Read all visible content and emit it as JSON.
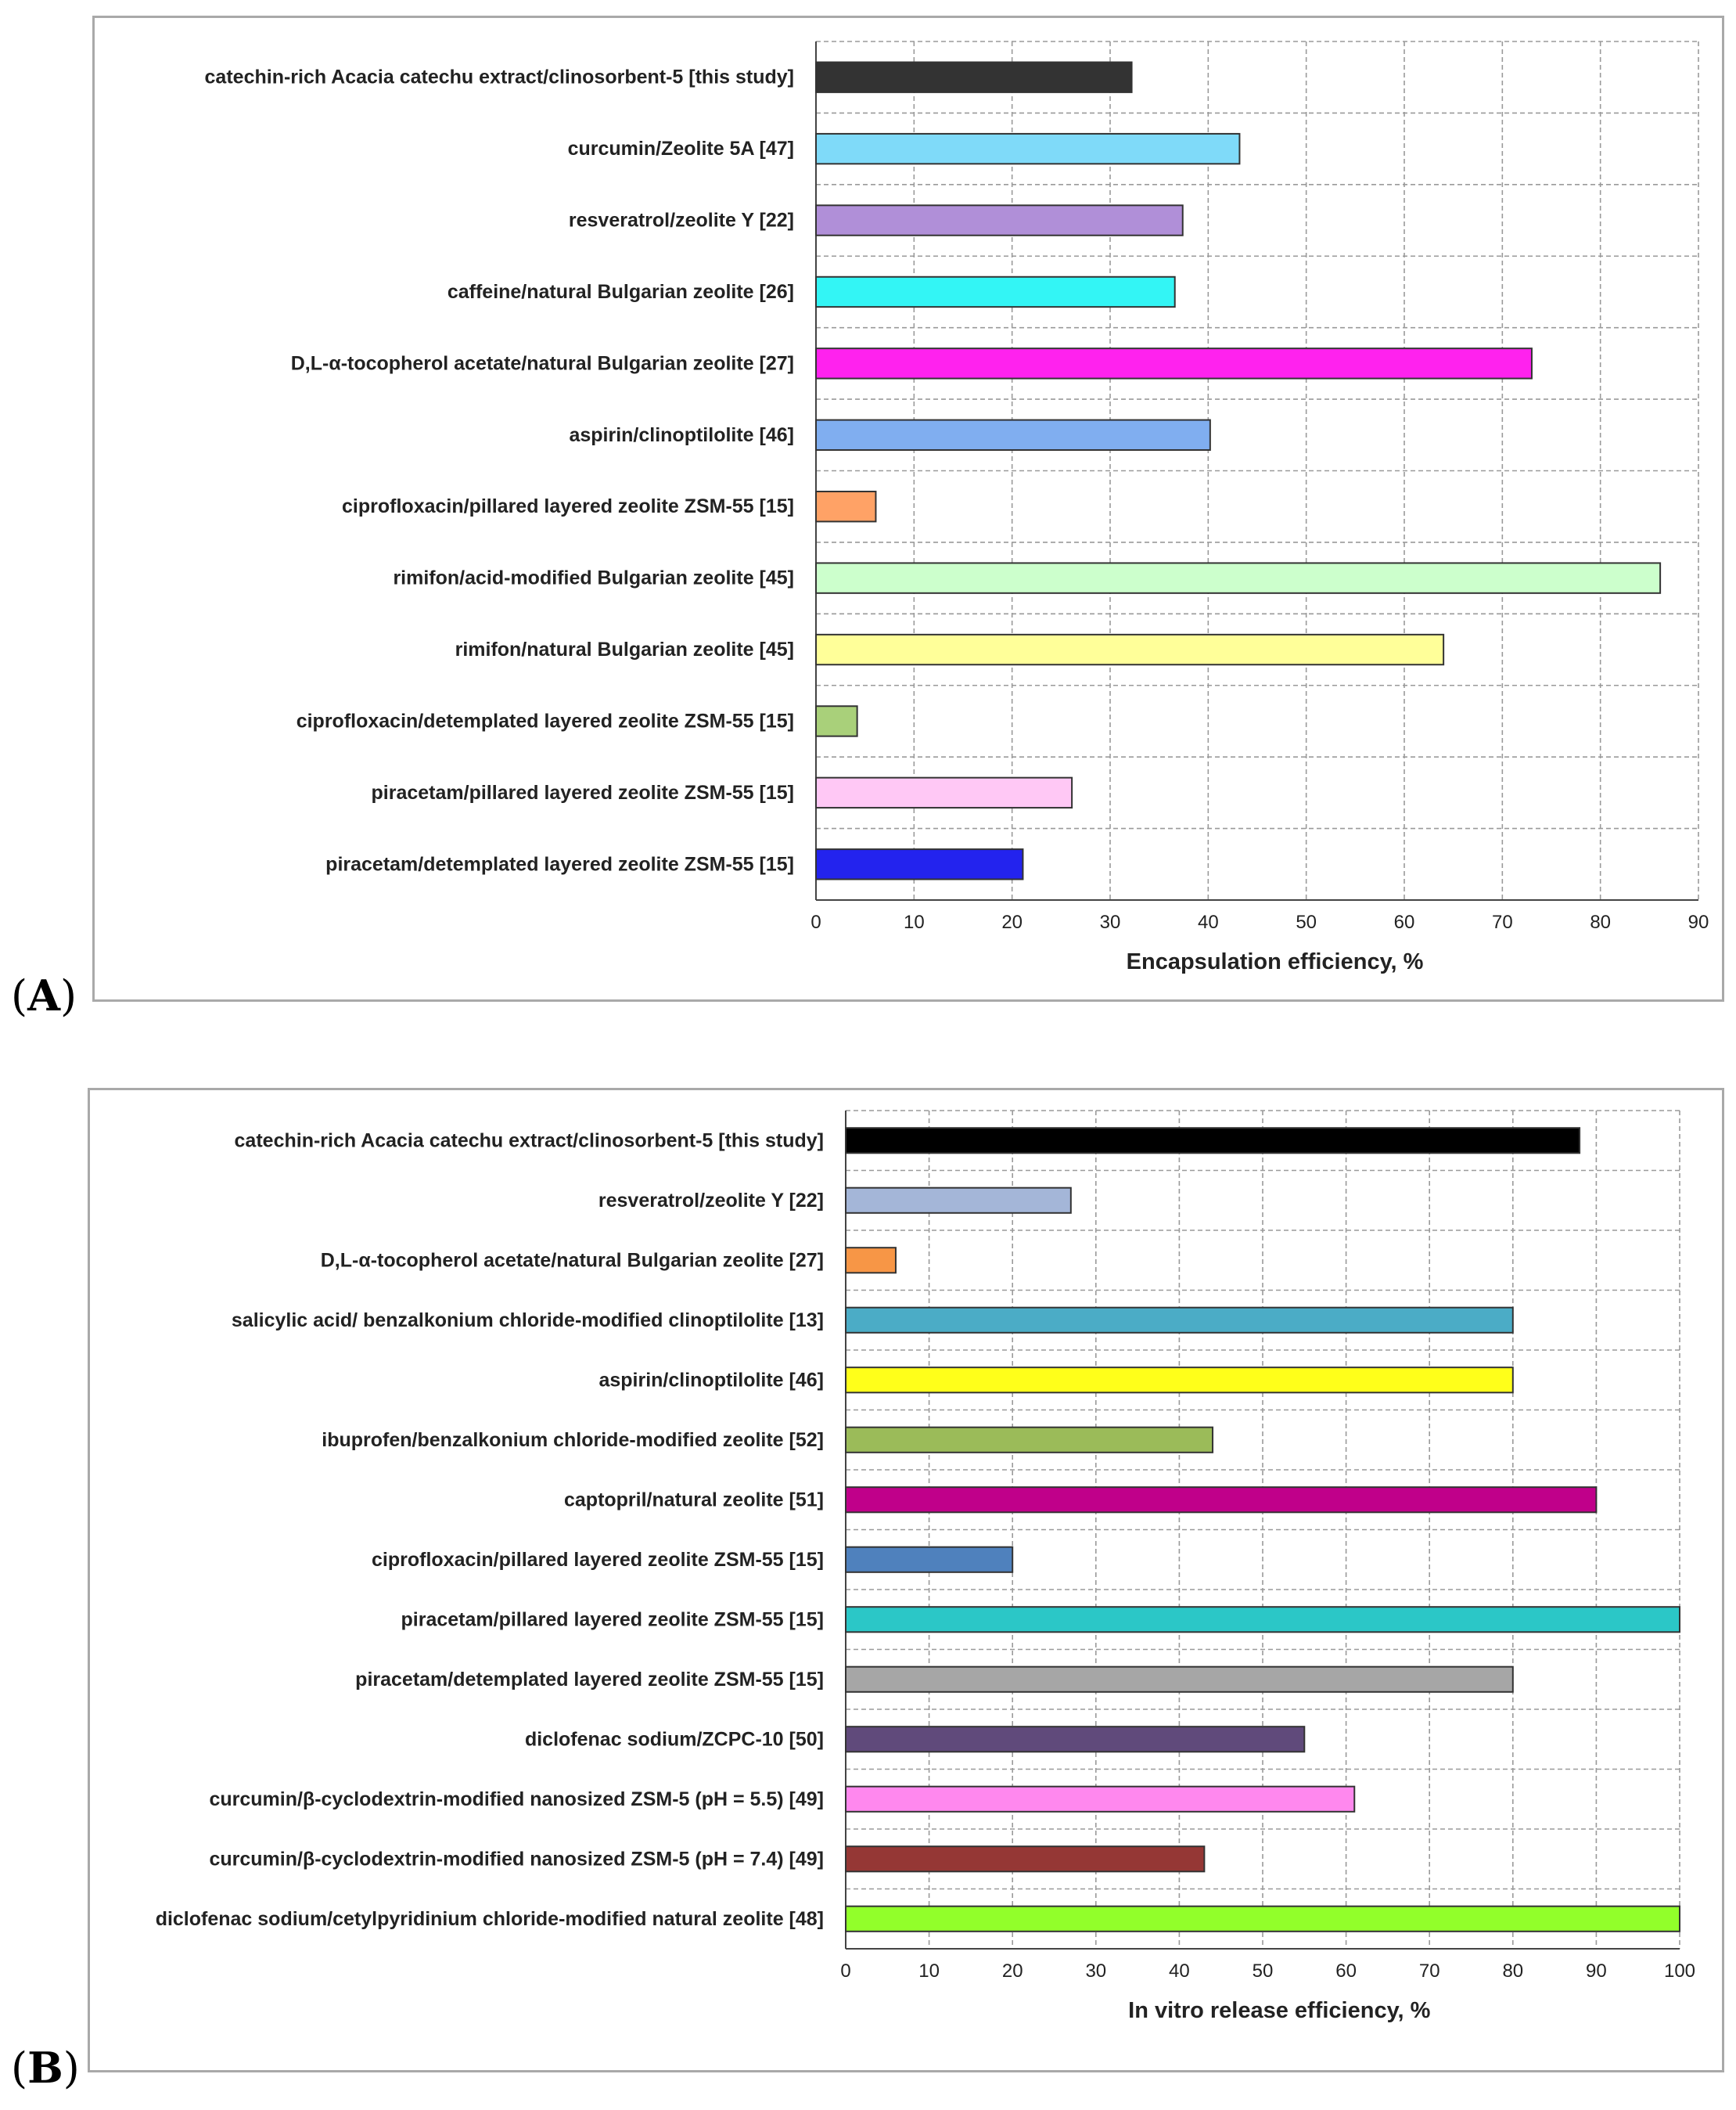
{
  "panels": {
    "a_label": "A",
    "b_label": "B"
  },
  "chart_data": [
    {
      "type": "bar",
      "orientation": "horizontal",
      "panel": "A",
      "xlabel": "Encapsulation efficiency, %",
      "xlim": [
        0,
        90
      ],
      "ticks": [
        0,
        10,
        20,
        30,
        40,
        50,
        60,
        70,
        80,
        90
      ],
      "grid": true,
      "categories": [
        "catechin-rich Acacia catechu extract/clinosorbent-5 [this study]",
        "curcumin/Zeolite 5A [47]",
        "resveratrol/zeolite Y [22]",
        "caffeine/natural Bulgarian zeolite [26]",
        "D,L-α-tocopherol acetate/natural Bulgarian zeolite [27]",
        "aspirin/clinoptilolite [46]",
        "ciprofloxacin/pillared layered zeolite ZSM-55 [15]",
        "rimifon/acid-modified Bulgarian zeolite [45]",
        "rimifon/natural Bulgarian zeolite [45]",
        "ciprofloxacin/detemplated layered zeolite ZSM-55 [15]",
        "piracetam/pillared layered zeolite ZSM-55 [15]",
        "piracetam/detemplated layered zeolite ZSM-55 [15]"
      ],
      "values": [
        32.2,
        43.2,
        37.4,
        36.6,
        73,
        40.2,
        6.1,
        86.1,
        64,
        4.2,
        26.1,
        21.1
      ],
      "colors": [
        "#333333",
        "#7fdaf9",
        "#b08fd8",
        "#33f5f5",
        "#ff22ee",
        "#80aef0",
        "#ffa266",
        "#ccffcc",
        "#ffff99",
        "#a9d07a",
        "#ffc8f5",
        "#2323ee"
      ]
    },
    {
      "type": "bar",
      "orientation": "horizontal",
      "panel": "B",
      "xlabel": "In vitro release efficiency, %",
      "xlim": [
        0,
        100
      ],
      "ticks": [
        0,
        10,
        20,
        30,
        40,
        50,
        60,
        70,
        80,
        90,
        100
      ],
      "grid": true,
      "categories": [
        "catechin-rich Acacia catechu extract/clinosorbent-5 [this study]",
        "resveratrol/zeolite Y [22]",
        "D,L-α-tocopherol acetate/natural Bulgarian zeolite [27]",
        "salicylic acid/ benzalkonium chloride-modified clinoptilolite [13]",
        "aspirin/clinoptilolite [46]",
        "ibuprofen/benzalkonium chloride-modified zeolite [52]",
        "captopril/natural zeolite [51]",
        "ciprofloxacin/pillared layered zeolite ZSM-55 [15]",
        "piracetam/pillared layered zeolite ZSM-55 [15]",
        "piracetam/detemplated layered zeolite ZSM-55 [15]",
        "diclofenac sodium/ZCPC-10 [50]",
        "curcumin/β-cyclodextrin-modified nanosized ZSM-5 (pH = 5.5) [49]",
        "curcumin/β-cyclodextrin-modified nanosized ZSM-5 (pH = 7.4) [49]",
        "diclofenac sodium/cetylpyridinium chloride-modified natural zeolite [48]"
      ],
      "values": [
        88,
        27,
        6,
        80,
        80,
        44,
        90,
        20,
        100,
        80,
        55,
        61,
        43,
        100
      ],
      "colors": [
        "#000000",
        "#a4b6d8",
        "#f79646",
        "#4bacc6",
        "#ffff1a",
        "#9bbb59",
        "#c0008a",
        "#4f81bd",
        "#2bc7c7",
        "#a6a6a6",
        "#604a7b",
        "#ff88ee",
        "#953735",
        "#92ff2a"
      ]
    }
  ]
}
